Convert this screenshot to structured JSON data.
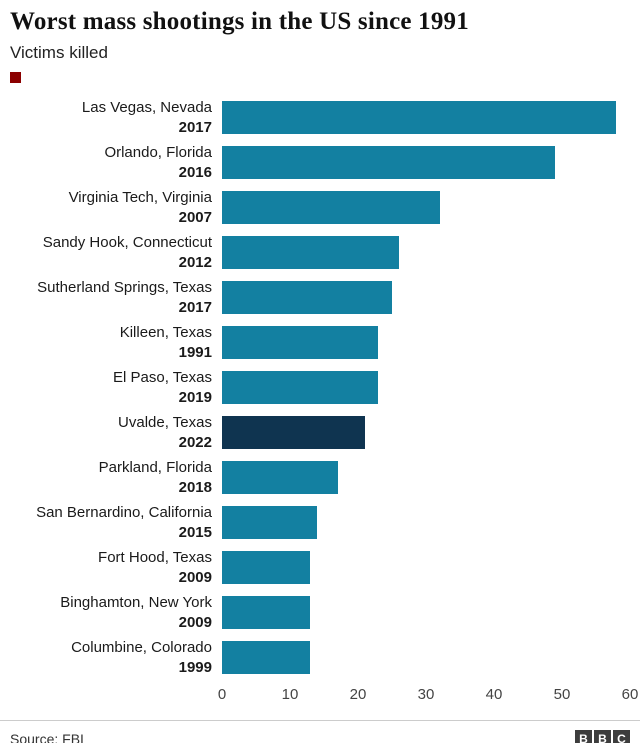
{
  "header": {
    "title": "Worst mass shootings in the US since 1991",
    "subtitle": "Victims killed",
    "accent_color": "#8b0000"
  },
  "chart_data": {
    "type": "bar",
    "orientation": "horizontal",
    "title": "Worst mass shootings in the US since 1991",
    "subtitle": "Victims killed",
    "categories": [
      "Las Vegas, Nevada",
      "Orlando, Florida",
      "Virginia Tech, Virginia",
      "Sandy Hook, Connecticut",
      "Sutherland Springs, Texas",
      "Killeen, Texas",
      "El Paso, Texas",
      "Uvalde, Texas",
      "Parkland, Florida",
      "San Bernardino, California",
      "Fort Hood, Texas",
      "Binghamton, New York",
      "Columbine, Colorado"
    ],
    "years": [
      "2017",
      "2016",
      "2007",
      "2012",
      "2017",
      "1991",
      "2019",
      "2022",
      "2018",
      "2015",
      "2009",
      "2009",
      "1999"
    ],
    "values": [
      58,
      49,
      32,
      26,
      25,
      23,
      23,
      21,
      17,
      14,
      13,
      13,
      13
    ],
    "xlim": [
      0,
      60
    ],
    "x_ticks": [
      0,
      10,
      20,
      30,
      40,
      50,
      60
    ],
    "bar_color": "#1380a1",
    "highlight_color": "#0f3450",
    "highlight_index": 7,
    "grid": false,
    "legend": false
  },
  "footer": {
    "source": "Source: FBI",
    "logo_letters": [
      "B",
      "B",
      "C"
    ]
  }
}
